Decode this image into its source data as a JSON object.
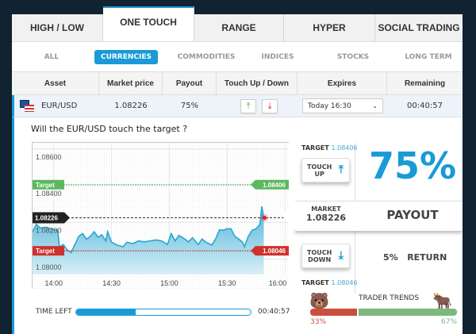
{
  "tabs": [
    {
      "label": "HIGH / LOW"
    },
    {
      "label": "ONE TOUCH",
      "active": true
    },
    {
      "label": "RANGE"
    },
    {
      "label": "HYPER"
    },
    {
      "label": "SOCIAL TRADING"
    }
  ],
  "filters": [
    {
      "label": "ALL"
    },
    {
      "label": "CURRENCIES",
      "active": true
    },
    {
      "label": "COMMODITIES"
    },
    {
      "label": "INDICES"
    },
    {
      "label": "STOCKS"
    },
    {
      "label": "LONG TERM"
    }
  ],
  "columns": [
    "Asset",
    "Market price",
    "Payout",
    "Touch Up / Down",
    "Expires",
    "Remaining"
  ],
  "row": {
    "asset": "EUR/USD",
    "flag_icon": "eu-us-flag-icon",
    "market_price": "1.08226",
    "payout": "75%",
    "touch_up_icon": "arrow-up-to-line-icon",
    "touch_down_icon": "arrow-down-to-line-icon",
    "expires": "Today 16:30",
    "remaining": "00:40:57"
  },
  "question": "Will the EUR/USD touch the target ?",
  "chart_data": {
    "type": "area",
    "y_ticks": [
      "1.08600",
      "1.08400",
      "1.08200",
      "1.08000"
    ],
    "x_ticks": [
      "14:00",
      "14:30",
      "15:00",
      "15:30",
      "16:00"
    ],
    "ylim": [
      1.07917,
      1.08634
    ],
    "xlim": [
      "13:49",
      "16:02"
    ],
    "grid": true,
    "target_up": {
      "label": "Target",
      "value": "1.08406",
      "color": "#5cb85c"
    },
    "target_down": {
      "label": "Target",
      "value": "1.08046",
      "color": "#d0312d"
    },
    "current": {
      "value": "1.08226"
    },
    "series_color": "#29a6cf",
    "points": [
      [
        "13:49",
        1.0815
      ],
      [
        "13:51",
        1.0819
      ],
      [
        "13:53",
        1.0817
      ],
      [
        "13:56",
        1.08175
      ],
      [
        "14:00",
        1.0816
      ],
      [
        "14:02",
        1.0816
      ],
      [
        "14:03",
        1.08068
      ],
      [
        "14:05",
        1.0808
      ],
      [
        "14:07",
        1.0805
      ],
      [
        "14:09",
        1.08036
      ],
      [
        "14:11",
        1.0808
      ],
      [
        "14:13",
        1.08125
      ],
      [
        "14:15",
        1.0814
      ],
      [
        "14:17",
        1.08109
      ],
      [
        "14:19",
        1.08125
      ],
      [
        "14:21",
        1.0815
      ],
      [
        "14:23",
        1.0812
      ],
      [
        "14:25",
        1.08133
      ],
      [
        "14:27",
        1.081
      ],
      [
        "14:28",
        1.0815
      ],
      [
        "14:30",
        1.08093
      ],
      [
        "14:33",
        1.08077
      ],
      [
        "14:36",
        1.08068
      ],
      [
        "14:38",
        1.08093
      ],
      [
        "14:41",
        1.08085
      ],
      [
        "14:44",
        1.081
      ],
      [
        "14:47",
        1.08095
      ],
      [
        "14:50",
        1.081
      ],
      [
        "14:53",
        1.08105
      ],
      [
        "14:56",
        1.081
      ],
      [
        "14:59",
        1.0808
      ],
      [
        "15:01",
        1.0814
      ],
      [
        "15:03",
        1.081
      ],
      [
        "15:05",
        1.0813
      ],
      [
        "15:08",
        1.0811
      ],
      [
        "15:10",
        1.08095
      ],
      [
        "15:12",
        1.08117
      ],
      [
        "15:15",
        1.0808
      ],
      [
        "15:17",
        1.0811
      ],
      [
        "15:19",
        1.08093
      ],
      [
        "15:22",
        1.08077
      ],
      [
        "15:24",
        1.0811
      ],
      [
        "15:26",
        1.0816
      ],
      [
        "15:28",
        1.08158
      ],
      [
        "15:30",
        1.08166
      ],
      [
        "15:32",
        1.08166
      ],
      [
        "15:34",
        1.08125
      ],
      [
        "15:36",
        1.0811
      ],
      [
        "15:38",
        1.08093
      ],
      [
        "15:39",
        1.08068
      ],
      [
        "15:41",
        1.08125
      ],
      [
        "15:43",
        1.08158
      ],
      [
        "15:45",
        1.08166
      ],
      [
        "15:47",
        1.0819
      ],
      [
        "15:48",
        1.08288
      ],
      [
        "15:49",
        1.08226
      ]
    ]
  },
  "time_left": {
    "label": "TIME LEFT",
    "value": "00:40:57",
    "progress_pct": 34
  },
  "panel": {
    "target_up_label": "TARGET",
    "target_up_value": "1.08406",
    "touch_up": [
      "TOUCH",
      "UP"
    ],
    "payout_pct": "75%",
    "market_label": "MARKET",
    "market_value": "1.08226",
    "payout_label": "PAYOUT",
    "touch_down": [
      "TOUCH",
      "DOWN"
    ],
    "return_pct": "5%",
    "return_label": "RETURN",
    "target_down_label": "TARGET",
    "target_down_value": "1.08046",
    "trends_label": "TRADER TRENDS",
    "bear_pct": "33%",
    "bull_pct": "67%",
    "bear_value": 33,
    "bull_value": 67,
    "bear_color": "#c9503f",
    "bull_color": "#7cb87c"
  }
}
